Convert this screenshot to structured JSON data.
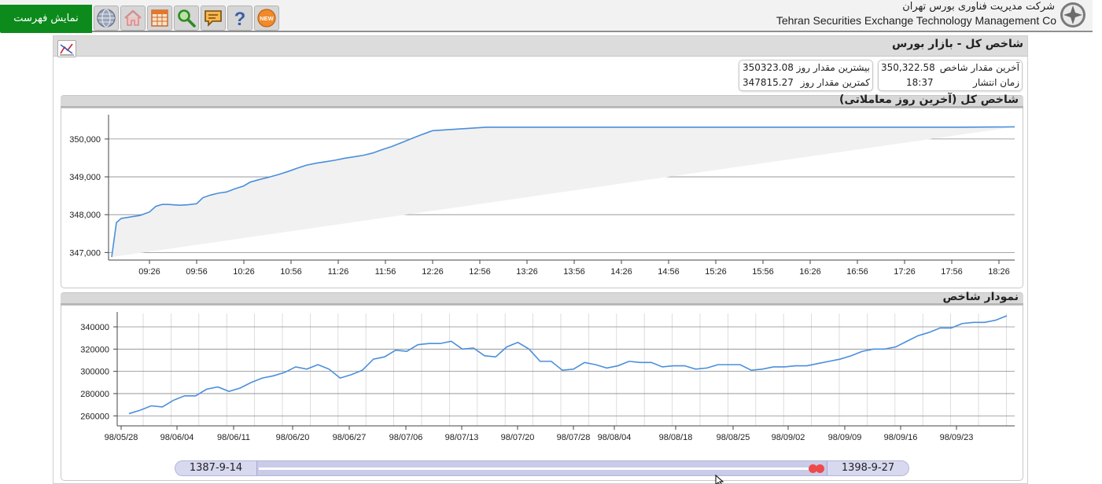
{
  "header": {
    "menu_button": "نمایش فهرست",
    "company_fa": "شرکت مدیریت فناوری بورس تهران",
    "company_en": "Tehran Securities Exchange Technology Management  Co",
    "toolbar_icons": [
      "globe-icon",
      "home-icon",
      "table-icon",
      "search-icon",
      "message-icon",
      "help-icon",
      "new-badge-icon"
    ],
    "new_badge": "NEW"
  },
  "panel": {
    "title": "شاخص کل - بازار بورس"
  },
  "info": {
    "last_value_label": "آخرین مقدار شاخص",
    "last_value": "350,322.58",
    "publish_time_label": "زمان انتشار",
    "publish_time": "18:37",
    "day_high_label": "بیشترین مقدار روز",
    "day_high": "350323.08",
    "day_low_label": "کمترین مقدار روز",
    "day_low": "347815.27"
  },
  "intraday_section": {
    "title": "شاخص کل (آخرین روز معاملاتی)"
  },
  "history_section": {
    "title": "نمودار شاخص"
  },
  "range": {
    "start": "1387-9-14",
    "end": "1398-9-27"
  },
  "chart_data": [
    {
      "type": "line",
      "title": "شاخص کل (آخرین روز معاملاتی)",
      "x_ticks": [
        "09:26",
        "09:56",
        "10:26",
        "10:56",
        "11:26",
        "11:56",
        "12:26",
        "12:56",
        "13:26",
        "13:56",
        "14:26",
        "14:56",
        "15:26",
        "15:56",
        "16:26",
        "16:56",
        "17:26",
        "17:56",
        "18:26"
      ],
      "y_ticks": [
        "347,000",
        "348,000",
        "349,000",
        "350,000"
      ],
      "ylim": [
        346800,
        350600
      ],
      "x_range_minutes": [
        "09:00",
        "18:36"
      ],
      "grid": "horizontal",
      "series": [
        {
          "color": "#4a8fdc",
          "x": [
            "09:02",
            "09:05",
            "09:08",
            "09:14",
            "09:20",
            "09:26",
            "09:30",
            "09:34",
            "09:38",
            "09:45",
            "09:50",
            "09:56",
            "10:00",
            "10:05",
            "10:10",
            "10:15",
            "10:20",
            "10:26",
            "10:30",
            "10:36",
            "10:42",
            "10:48",
            "10:54",
            "11:00",
            "11:06",
            "11:12",
            "11:18",
            "11:24",
            "11:30",
            "11:36",
            "11:42",
            "11:48",
            "11:54",
            "12:00",
            "12:06",
            "12:12",
            "12:18",
            "12:22",
            "12:26",
            "13:00",
            "14:00",
            "15:00",
            "16:00",
            "17:00",
            "18:00",
            "18:36"
          ],
          "values": [
            346880,
            347790,
            347900,
            347940,
            347980,
            348070,
            348220,
            348270,
            348270,
            348250,
            348260,
            348290,
            348450,
            348520,
            348570,
            348600,
            348680,
            348760,
            348860,
            348930,
            348990,
            349060,
            349140,
            349230,
            349310,
            349360,
            349400,
            349440,
            349490,
            349530,
            349570,
            349630,
            349720,
            349800,
            349900,
            350000,
            350100,
            350160,
            350220,
            350310,
            350310,
            350310,
            350310,
            350310,
            350310,
            350320
          ]
        }
      ]
    },
    {
      "type": "line",
      "title": "نمودار شاخص",
      "x_ticks": [
        "98/05/28",
        "98/06/04",
        "98/06/11",
        "98/06/20",
        "98/06/27",
        "98/07/06",
        "98/07/13",
        "98/07/20",
        "98/07/28",
        "98/08/04",
        "98/08/18",
        "98/08/25",
        "98/09/02",
        "98/09/09",
        "98/09/16",
        "98/09/23"
      ],
      "y_ticks": [
        "260000",
        "280000",
        "300000",
        "320000",
        "340000"
      ],
      "ylim": [
        251000,
        352000
      ],
      "grid": "both",
      "series": [
        {
          "color": "#4a8fdc",
          "values": [
            262000,
            265000,
            269000,
            268000,
            274000,
            278000,
            278000,
            284000,
            286000,
            282000,
            285000,
            290000,
            294000,
            296000,
            299000,
            304000,
            302000,
            306000,
            302000,
            294000,
            297000,
            301000,
            311000,
            313000,
            319000,
            318000,
            324000,
            325000,
            325000,
            327000,
            320000,
            321000,
            314000,
            313000,
            322000,
            326000,
            320000,
            309000,
            309000,
            301000,
            302000,
            308000,
            306000,
            303000,
            305000,
            309000,
            308000,
            308000,
            304000,
            305000,
            305000,
            302000,
            303000,
            306000,
            306000,
            306000,
            301000,
            302000,
            304000,
            304000,
            305000,
            305000,
            307000,
            309000,
            311000,
            314000,
            318000,
            320000,
            320000,
            322000,
            327000,
            332000,
            335000,
            339000,
            339000,
            343000,
            344000,
            344000,
            346000,
            350000
          ]
        }
      ]
    }
  ]
}
